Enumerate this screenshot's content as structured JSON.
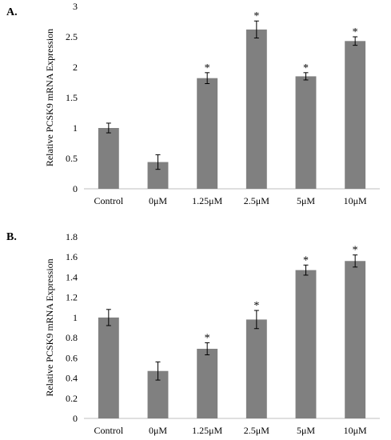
{
  "chart_data": [
    {
      "type": "bar",
      "panel_label": "A.",
      "categories": [
        "Control",
        "0μM",
        "1.25μM",
        "2.5μM",
        "5μM",
        "10μM"
      ],
      "values": [
        1.0,
        0.44,
        1.82,
        2.62,
        1.85,
        2.43
      ],
      "errors": [
        0.08,
        0.12,
        0.09,
        0.14,
        0.06,
        0.07
      ],
      "significance": [
        "",
        "",
        "*",
        "*",
        "*",
        "*"
      ],
      "ylabel": "Relative PCSK9 mRNA Expression",
      "ylim": [
        0,
        3
      ],
      "yticks": [
        "0",
        "0.5",
        "1",
        "1.5",
        "2",
        "2.5",
        "3"
      ],
      "grid": false,
      "bar_color": "#808080"
    },
    {
      "type": "bar",
      "panel_label": "B.",
      "categories": [
        "Control",
        "0μM",
        "1.25μM",
        "2.5μM",
        "5μM",
        "10μM"
      ],
      "values": [
        1.0,
        0.47,
        0.69,
        0.98,
        1.47,
        1.56
      ],
      "errors": [
        0.08,
        0.09,
        0.06,
        0.09,
        0.05,
        0.06
      ],
      "significance": [
        "",
        "",
        "*",
        "*",
        "*",
        "*"
      ],
      "ylabel": "Relative PCSK9 mRNA Expression",
      "ylim": [
        0,
        1.8
      ],
      "yticks": [
        "0",
        "0.2",
        "0.4",
        "0.6",
        "0.8",
        "1",
        "1.2",
        "1.4",
        "1.6",
        "1.8"
      ],
      "grid": false,
      "bar_color": "#808080"
    }
  ]
}
